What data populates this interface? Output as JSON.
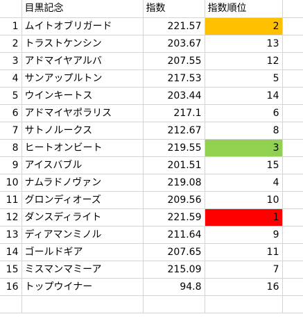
{
  "sheet": {
    "headers": {
      "race": "目黒記念",
      "index": "指数",
      "rank": "指数順位"
    },
    "highlight_colors": {
      "orange": "#FFC000",
      "green": "#92D050",
      "red": "#FF0000"
    },
    "rows": [
      {
        "no": "1",
        "name": "ムイトオブリガード",
        "index": "221.57",
        "rank": "2",
        "highlight": "orange"
      },
      {
        "no": "2",
        "name": "トラストケンシン",
        "index": "203.67",
        "rank": "13",
        "highlight": ""
      },
      {
        "no": "3",
        "name": "アドマイヤアルバ",
        "index": "207.55",
        "rank": "12",
        "highlight": ""
      },
      {
        "no": "4",
        "name": "サンアップルトン",
        "index": "217.53",
        "rank": "5",
        "highlight": ""
      },
      {
        "no": "5",
        "name": "ウインキートス",
        "index": "203.44",
        "rank": "14",
        "highlight": ""
      },
      {
        "no": "6",
        "name": "アドマイヤポラリス",
        "index": "217.1",
        "rank": "6",
        "highlight": ""
      },
      {
        "no": "7",
        "name": "サトノルークス",
        "index": "212.67",
        "rank": "8",
        "highlight": ""
      },
      {
        "no": "8",
        "name": "ヒートオンビート",
        "index": "219.55",
        "rank": "3",
        "highlight": "green"
      },
      {
        "no": "9",
        "name": "アイスバブル",
        "index": "201.51",
        "rank": "15",
        "highlight": ""
      },
      {
        "no": "10",
        "name": "ナムラドノヴァン",
        "index": "219.08",
        "rank": "4",
        "highlight": ""
      },
      {
        "no": "11",
        "name": "グロンディオーズ",
        "index": "209.56",
        "rank": "10",
        "highlight": ""
      },
      {
        "no": "12",
        "name": "ダンスディライト",
        "index": "221.59",
        "rank": "1",
        "highlight": "red"
      },
      {
        "no": "13",
        "name": "ディアマンミノル",
        "index": "211.64",
        "rank": "9",
        "highlight": ""
      },
      {
        "no": "14",
        "name": "ゴールドギア",
        "index": "207.65",
        "rank": "11",
        "highlight": ""
      },
      {
        "no": "15",
        "name": "ミスマンマミーア",
        "index": "215.09",
        "rank": "7",
        "highlight": ""
      },
      {
        "no": "16",
        "name": "トップウイナー",
        "index": "94.8",
        "rank": "16",
        "highlight": ""
      }
    ]
  }
}
